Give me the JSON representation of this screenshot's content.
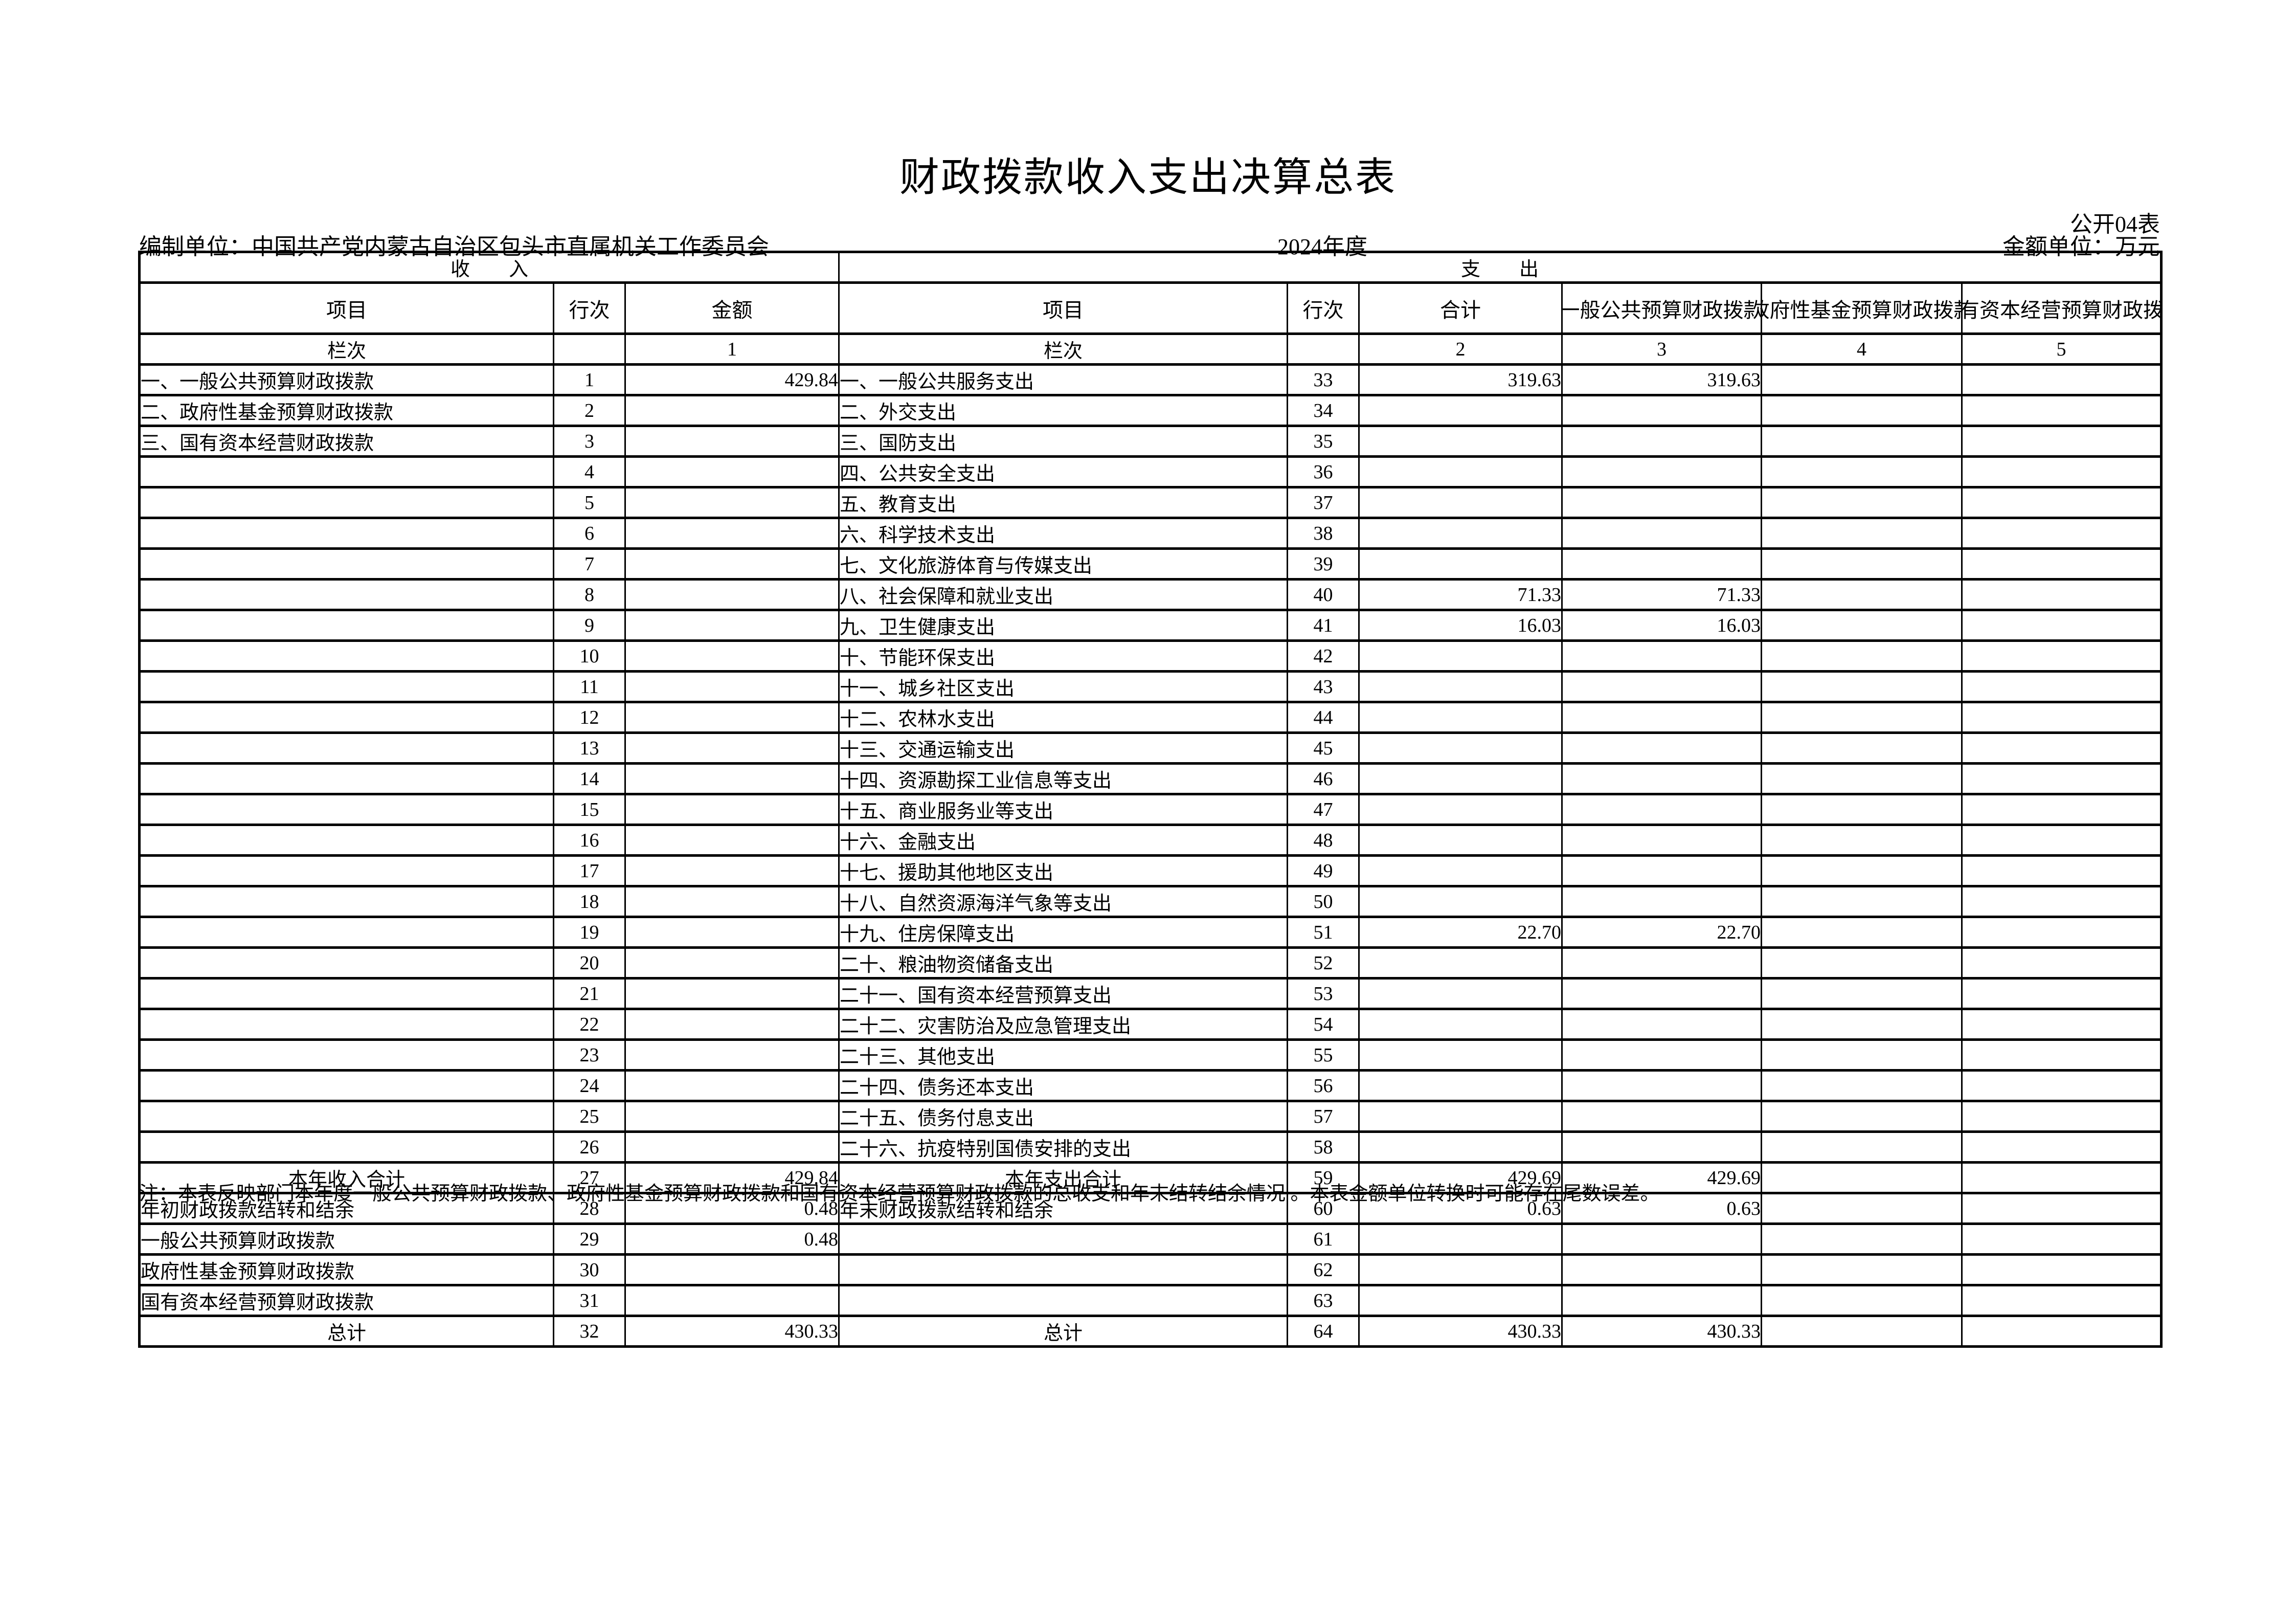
{
  "title": "财政拨款收入支出决算总表",
  "meta": {
    "table_code": "公开04表",
    "prepared_by": "编制单位：中国共产党内蒙古自治区包头市直属机关工作委员会",
    "year": "2024年度",
    "unit": "金额单位：万元"
  },
  "colors": {
    "text": "#000000",
    "border": "#000000",
    "background": "#ffffff"
  },
  "header": {
    "income_group": "收　　入",
    "expense_group": "支　　出",
    "income_item": "项目",
    "income_line": "行次",
    "income_amount": "金额",
    "expense_item": "项目",
    "expense_line": "行次",
    "expense_total": "合计",
    "expense_general_budget": "一般公共预算财政拨款",
    "expense_govt_fund": "政府性基金预算财政拨款",
    "expense_state_capital": "国有资本经营预算财政拨款",
    "colindex_label_income": "栏次",
    "colindex_label_expense": "栏次",
    "col_index_1": "1",
    "col_index_2": "2",
    "col_index_3": "3",
    "col_index_4": "4",
    "col_index_5": "5"
  },
  "center_rows": [
    26,
    31
  ],
  "rows": [
    [
      "一、一般公共预算财政拨款",
      "1",
      "429.84",
      "一、一般公共服务支出",
      "33",
      "319.63",
      "319.63",
      "",
      ""
    ],
    [
      "二、政府性基金预算财政拨款",
      "2",
      "",
      "二、外交支出",
      "34",
      "",
      "",
      "",
      ""
    ],
    [
      "三、国有资本经营财政拨款",
      "3",
      "",
      "三、国防支出",
      "35",
      "",
      "",
      "",
      ""
    ],
    [
      "",
      "4",
      "",
      "四、公共安全支出",
      "36",
      "",
      "",
      "",
      ""
    ],
    [
      "",
      "5",
      "",
      "五、教育支出",
      "37",
      "",
      "",
      "",
      ""
    ],
    [
      "",
      "6",
      "",
      "六、科学技术支出",
      "38",
      "",
      "",
      "",
      ""
    ],
    [
      "",
      "7",
      "",
      "七、文化旅游体育与传媒支出",
      "39",
      "",
      "",
      "",
      ""
    ],
    [
      "",
      "8",
      "",
      "八、社会保障和就业支出",
      "40",
      "71.33",
      "71.33",
      "",
      ""
    ],
    [
      "",
      "9",
      "",
      "九、卫生健康支出",
      "41",
      "16.03",
      "16.03",
      "",
      ""
    ],
    [
      "",
      "10",
      "",
      "十、节能环保支出",
      "42",
      "",
      "",
      "",
      ""
    ],
    [
      "",
      "11",
      "",
      "十一、城乡社区支出",
      "43",
      "",
      "",
      "",
      ""
    ],
    [
      "",
      "12",
      "",
      "十二、农林水支出",
      "44",
      "",
      "",
      "",
      ""
    ],
    [
      "",
      "13",
      "",
      "十三、交通运输支出",
      "45",
      "",
      "",
      "",
      ""
    ],
    [
      "",
      "14",
      "",
      "十四、资源勘探工业信息等支出",
      "46",
      "",
      "",
      "",
      ""
    ],
    [
      "",
      "15",
      "",
      "十五、商业服务业等支出",
      "47",
      "",
      "",
      "",
      ""
    ],
    [
      "",
      "16",
      "",
      "十六、金融支出",
      "48",
      "",
      "",
      "",
      ""
    ],
    [
      "",
      "17",
      "",
      "十七、援助其他地区支出",
      "49",
      "",
      "",
      "",
      ""
    ],
    [
      "",
      "18",
      "",
      "十八、自然资源海洋气象等支出",
      "50",
      "",
      "",
      "",
      ""
    ],
    [
      "",
      "19",
      "",
      "十九、住房保障支出",
      "51",
      "22.70",
      "22.70",
      "",
      ""
    ],
    [
      "",
      "20",
      "",
      "二十、粮油物资储备支出",
      "52",
      "",
      "",
      "",
      ""
    ],
    [
      "",
      "21",
      "",
      "二十一、国有资本经营预算支出",
      "53",
      "",
      "",
      "",
      ""
    ],
    [
      "",
      "22",
      "",
      "二十二、灾害防治及应急管理支出",
      "54",
      "",
      "",
      "",
      ""
    ],
    [
      "",
      "23",
      "",
      "二十三、其他支出",
      "55",
      "",
      "",
      "",
      ""
    ],
    [
      "",
      "24",
      "",
      "二十四、债务还本支出",
      "56",
      "",
      "",
      "",
      ""
    ],
    [
      "",
      "25",
      "",
      "二十五、债务付息支出",
      "57",
      "",
      "",
      "",
      ""
    ],
    [
      "",
      "26",
      "",
      "二十六、抗疫特别国债安排的支出",
      "58",
      "",
      "",
      "",
      ""
    ],
    [
      "本年收入合计",
      "27",
      "429.84",
      "本年支出合计",
      "59",
      "429.69",
      "429.69",
      "",
      ""
    ],
    [
      "年初财政拨款结转和结余",
      "28",
      "0.48",
      "年末财政拨款结转和结余",
      "60",
      "0.63",
      "0.63",
      "",
      ""
    ],
    [
      "一般公共预算财政拨款",
      "29",
      "0.48",
      "",
      "61",
      "",
      "",
      "",
      ""
    ],
    [
      "政府性基金预算财政拨款",
      "30",
      "",
      "",
      "62",
      "",
      "",
      "",
      ""
    ],
    [
      "国有资本经营预算财政拨款",
      "31",
      "",
      "",
      "63",
      "",
      "",
      "",
      ""
    ],
    [
      "总计",
      "32",
      "430.33",
      "总计",
      "64",
      "430.33",
      "430.33",
      "",
      ""
    ]
  ],
  "note": "注：本表反映部门本年度一般公共预算财政拨款、政府性基金预算财政拨款和国有资本经营预算财政拨款的总收支和年末结转结余情况 。本表金额单位转换时可能存在尾数误差。"
}
